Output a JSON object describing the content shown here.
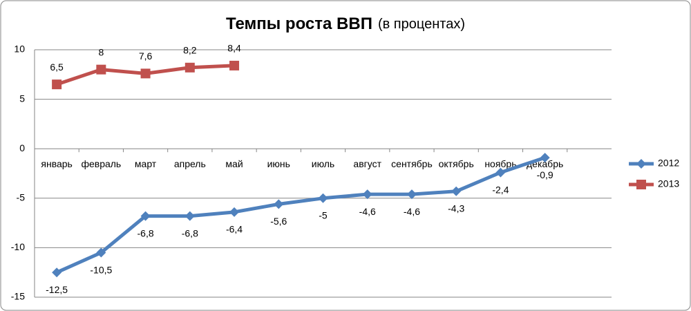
{
  "chart_data": {
    "type": "line",
    "title": "Темпы роста ВВП",
    "subtitle": "(в процентах)",
    "categories": [
      "январь",
      "февраль",
      "март",
      "апрель",
      "май",
      "июнь",
      "июль",
      "август",
      "сентябрь",
      "октябрь",
      "ноябрь",
      "декабрь",
      null
    ],
    "series": [
      {
        "name": "2012",
        "color": "#4f81bd",
        "marker": "diamond",
        "values": [
          -12.5,
          -10.5,
          -6.8,
          -6.8,
          -6.4,
          -5.6,
          -5,
          -4.6,
          -4.6,
          -4.3,
          -2.4,
          -0.9,
          null
        ],
        "value_labels": [
          "-12,5",
          "-10,5",
          "-6,8",
          "-6,8",
          "-6,4",
          "-5,6",
          "-5",
          "-4,6",
          "-4,6",
          "-4,3",
          "-2,4",
          "-0,9",
          null
        ]
      },
      {
        "name": "2013",
        "color": "#c0504d",
        "marker": "square",
        "values": [
          6.5,
          8,
          7.6,
          8.2,
          8.4,
          null,
          null,
          null,
          null,
          null,
          null,
          null,
          null
        ],
        "value_labels": [
          "6,5",
          "8",
          "7,6",
          "8,2",
          "8,4",
          null,
          null,
          null,
          null,
          null,
          null,
          null,
          null
        ]
      }
    ],
    "ylim": [
      -15,
      10
    ],
    "yticks": [
      -15,
      -10,
      -5,
      0,
      5,
      10
    ],
    "grid": true,
    "legend": "right"
  }
}
